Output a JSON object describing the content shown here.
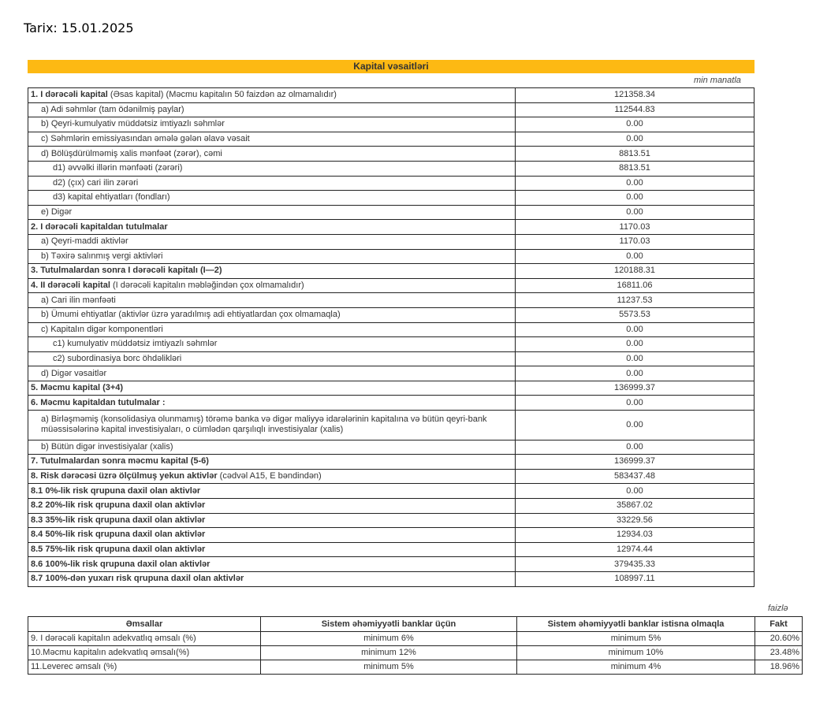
{
  "date_label": "Tarix: 15.01.2025",
  "title": "Kapital vəsaitləri",
  "unit_main": "min manatla",
  "rows": [
    {
      "b": "1. I dərəcəli kapital",
      "t": " (Əsas kapital) (Məcmu kapitalın 50 faizdən  az olmamalıdır)",
      "indent": 0,
      "value": "121358.34"
    },
    {
      "b": "",
      "t": "a) Adi səhmlər (tam ödənilmiş paylar)",
      "indent": 1,
      "value": "112544.83"
    },
    {
      "b": "",
      "t": "b) Qeyri-kumulyativ müddətsiz imtiyazlı səhmlər",
      "indent": 1,
      "value": "0.00"
    },
    {
      "b": "",
      "t": "c) Səhmlərin emissiyasından əmələ gələn  əlavə vəsait",
      "indent": 1,
      "value": "0.00"
    },
    {
      "b": "",
      "t": "d)   Bölüşdürülməmiş xalis mənfəət (zərər), cəmi",
      "indent": 1,
      "value": "8813.51"
    },
    {
      "b": "",
      "t": "d1) əvvəlki illərin mənfəəti (zərəri)",
      "indent": 2,
      "value": "8813.51"
    },
    {
      "b": "",
      "t": "d2) (çıx) cari ilin zərəri",
      "indent": 2,
      "value": "0.00"
    },
    {
      "b": "",
      "t": "d3) kapital ehtiyatları (fondları)",
      "indent": 2,
      "value": "0.00"
    },
    {
      "b": "",
      "t": "e) Digər",
      "indent": 1,
      "value": "0.00"
    },
    {
      "b": "2. I dərəcəli kapitaldan  tutulmalar",
      "t": "",
      "indent": 0,
      "value": "1170.03"
    },
    {
      "b": "",
      "t": "a) Qeyri-maddi aktivlər",
      "indent": 1,
      "value": "1170.03"
    },
    {
      "b": "",
      "t": "b) Təxirə salınmış vergi aktivləri",
      "indent": 1,
      "value": "0.00"
    },
    {
      "b": "3. Tutulmalardan  sonra I dərəcəli kapitalı (I—2)",
      "t": "",
      "indent": 0,
      "value": "120188.31"
    },
    {
      "b": "4. II dərəcəli  kapital",
      "t": " (I dərəcəli  kapitalın  məbləğindən çox olmamalıdır)",
      "indent": 0,
      "value": "16811.06"
    },
    {
      "b": "",
      "t": "a) Cari ilin mənfəəti",
      "indent": 1,
      "value": "11237.53"
    },
    {
      "b": "",
      "t": "b) Ümumi ehtiyatlar (aktivlər üzrə yaradılmış adi ehtiyatlardan çox olmamaqla)",
      "indent": 1,
      "value": "5573.53"
    },
    {
      "b": "",
      "t": "c)  Kapitalın digər komponentləri",
      "indent": 1,
      "value": "0.00"
    },
    {
      "b": "",
      "t": "c1) kumulyativ müddətsiz imtiyazlı səhmlər",
      "indent": 2,
      "value": "0.00"
    },
    {
      "b": "",
      "t": "c2) subordinasiya borc öhdəlikləri",
      "indent": 2,
      "value": "0.00"
    },
    {
      "b": "",
      "t": "d) Digər vəsaitlər",
      "indent": 1,
      "value": "0.00"
    },
    {
      "b": "5. Məcmu kapital (3+4)",
      "t": "",
      "indent": 0,
      "value": "136999.37"
    },
    {
      "b": "6. Məcmu kapitaldan tutulmalar :",
      "t": "",
      "indent": 0,
      "value": "0.00"
    },
    {
      "b": "",
      "t": "a)   Birləşməmiş (konsolidasiya olunmamış) törəmə banka və digər maliyyə idarələrinin kapitalına və bütün qeyri-bank müəssisələrinə kapital investisiyaları, o cümlədən qarşılıqlı investisiyalar (xalis)",
      "indent": 1,
      "value": "0.00",
      "double": true
    },
    {
      "b": "",
      "t": "b)    Bütün digər investisiyalar (xalis)",
      "indent": 1,
      "value": "0.00"
    },
    {
      "b": "7. Tutulmalardan  sonra məcmu kapital (5-6)",
      "t": "",
      "indent": 0,
      "value": "136999.37"
    },
    {
      "b": "8. Risk dərəcəsi üzrə ölçülmuş  yekun aktivlər",
      "t": "  (cədvəl A15, E bəndindən)",
      "indent": 0,
      "value": "583437.48"
    },
    {
      "b": "8.1 0%-lik risk qrupuna daxil olan aktivlər",
      "t": "",
      "indent": 0,
      "value": "0.00"
    },
    {
      "b": "8.2 20%-lik risk qrupuna daxil olan aktivlər",
      "t": "",
      "indent": 0,
      "value": "35867.02"
    },
    {
      "b": "8.3 35%-lik risk qrupuna daxil olan aktivlər",
      "t": "",
      "indent": 0,
      "value": "33229.56"
    },
    {
      "b": "8.4 50%-lik risk qrupuna daxil olan aktivlər",
      "t": "",
      "indent": 0,
      "value": "12934.03"
    },
    {
      "b": "8.5 75%-lik risk qrupuna daxil olan aktivlər",
      "t": "",
      "indent": 0,
      "value": "12974.44"
    },
    {
      "b": "8.6 100%-lik risk qrupuna daxil olan aktivlər",
      "t": "",
      "indent": 0,
      "value": "379435.33"
    },
    {
      "b": "8.7 100%-dən yuxarı risk qrupuna daxil olan aktivlər",
      "t": "",
      "indent": 0,
      "value": "108997.11"
    }
  ],
  "unit_ratios": "faizlə",
  "ratios": {
    "headers": [
      "Əmsallar",
      "Sistem əhəmiyyətli banklar üçün",
      "Sistem əhəmiyyətli banklar istisna olmaqla",
      "Fakt"
    ],
    "rows": [
      [
        "9. I dərəcəli  kapitalın  adekvatlıq əmsalı (%)",
        "minimum 6%",
        "minimum 5%",
        "20.60%"
      ],
      [
        "10.Məcmu kapitalın  adekvatlıq  əmsalı(%)",
        "minimum 12%",
        "minimum 10%",
        "23.48%"
      ],
      [
        "11.Leverec əmsalı (%)",
        "minimum 5%",
        "minimum 4%",
        "18.96%"
      ]
    ]
  },
  "colors": {
    "header_bar": "#FDB913"
  }
}
